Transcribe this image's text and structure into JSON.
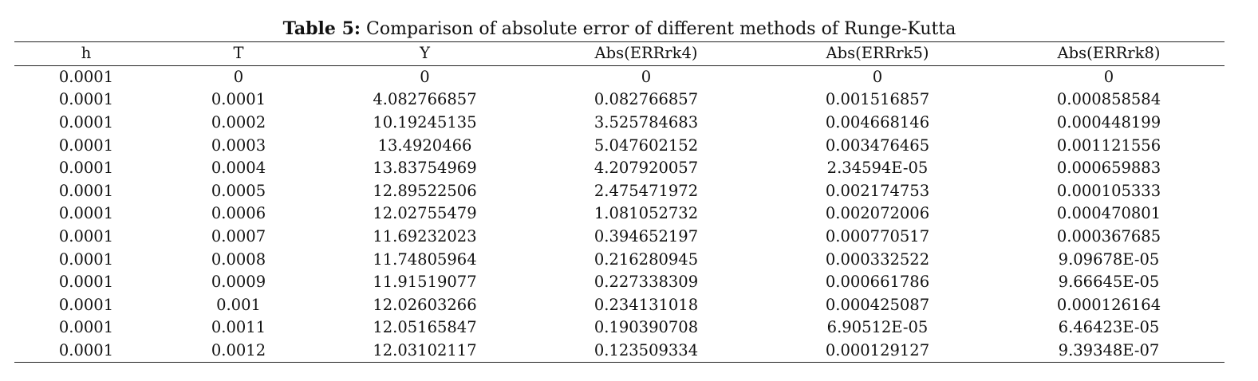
{
  "caption": {
    "label": "Table 5:",
    "text": "Comparison of absolute error of different methods of Runge-Kutta"
  },
  "table": {
    "header": [
      "h",
      "T",
      "Y",
      "Abs(ERRrk4)",
      "Abs(ERRrk5)",
      "Abs(ERRrk8)"
    ],
    "rows": [
      [
        "0.0001",
        "0",
        "0",
        "0",
        "0",
        "0"
      ],
      [
        "0.0001",
        "0.0001",
        "4.082766857",
        "0.082766857",
        "0.001516857",
        "0.000858584"
      ],
      [
        "0.0001",
        "0.0002",
        "10.19245135",
        "3.525784683",
        "0.004668146",
        "0.000448199"
      ],
      [
        "0.0001",
        "0.0003",
        "13.4920466",
        "5.047602152",
        "0.003476465",
        "0.001121556"
      ],
      [
        "0.0001",
        "0.0004",
        "13.83754969",
        "4.207920057",
        "2.34594E-05",
        "0.000659883"
      ],
      [
        "0.0001",
        "0.0005",
        "12.89522506",
        "2.475471972",
        "0.002174753",
        "0.000105333"
      ],
      [
        "0.0001",
        "0.0006",
        "12.02755479",
        "1.081052732",
        "0.002072006",
        "0.000470801"
      ],
      [
        "0.0001",
        "0.0007",
        "11.69232023",
        "0.394652197",
        "0.000770517",
        "0.000367685"
      ],
      [
        "0.0001",
        "0.0008",
        "11.74805964",
        "0.216280945",
        "0.000332522",
        "9.09678E-05"
      ],
      [
        "0.0001",
        "0.0009",
        "11.91519077",
        "0.227338309",
        "0.000661786",
        "9.66645E-05"
      ],
      [
        "0.0001",
        "0.001",
        "12.02603266",
        "0.234131018",
        "0.000425087",
        "0.000126164"
      ],
      [
        "0.0001",
        "0.0011",
        "12.05165847",
        "0.190390708",
        "6.90512E-05",
        "6.46423E-05"
      ],
      [
        "0.0001",
        "0.0012",
        "12.03102117",
        "0.123509334",
        "0.000129127",
        "9.39348E-07"
      ]
    ]
  }
}
